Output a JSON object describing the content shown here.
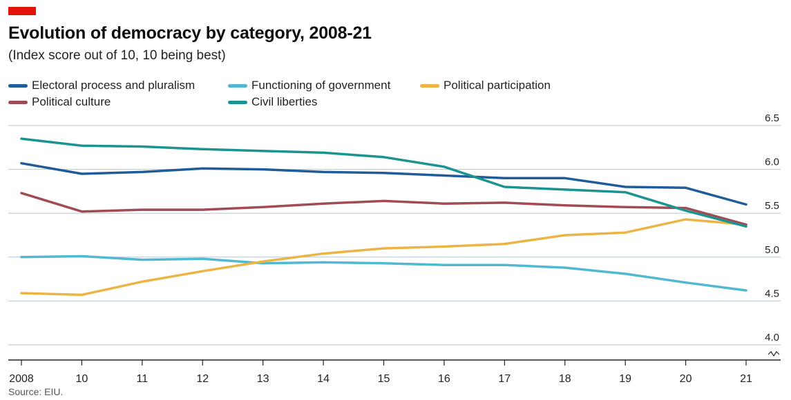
{
  "header": {
    "title": "Evolution of democracy by category, 2008-21",
    "subtitle": "(Index score out of 10, 10 being best)"
  },
  "source": "Source: EIU.",
  "colors": {
    "brand_red": "#e3120b",
    "grid": "#b7c6cf",
    "axis": "#222222"
  },
  "chart_data": {
    "type": "line",
    "categories": [
      "2008",
      "10",
      "11",
      "12",
      "13",
      "14",
      "15",
      "16",
      "17",
      "18",
      "19",
      "20",
      "21"
    ],
    "ylim": [
      4.0,
      6.5
    ],
    "yticks": [
      "4.0",
      "4.5",
      "5.0",
      "5.5",
      "6.0",
      "6.5"
    ],
    "y_axis_side": "right",
    "grid": true,
    "legend": "top",
    "axis_break": true,
    "series": [
      {
        "name": "Electoral process and pluralism",
        "color": "#1f5c99",
        "values": [
          6.07,
          5.95,
          5.97,
          6.01,
          6.0,
          5.97,
          5.96,
          5.93,
          5.9,
          5.9,
          5.8,
          5.79,
          5.6
        ]
      },
      {
        "name": "Functioning of government",
        "color": "#50b8d0",
        "values": [
          5.0,
          5.01,
          4.97,
          4.98,
          4.93,
          4.94,
          4.93,
          4.91,
          4.91,
          4.88,
          4.81,
          4.71,
          4.62
        ]
      },
      {
        "name": "Political participation",
        "color": "#ebb445",
        "values": [
          4.59,
          4.57,
          4.72,
          4.84,
          4.95,
          5.04,
          5.1,
          5.12,
          5.15,
          5.25,
          5.28,
          5.43,
          5.37
        ]
      },
      {
        "name": "Political culture",
        "color": "#a14b55",
        "values": [
          5.73,
          5.52,
          5.54,
          5.54,
          5.57,
          5.61,
          5.64,
          5.61,
          5.62,
          5.59,
          5.57,
          5.56,
          5.37
        ]
      },
      {
        "name": "Civil liberties",
        "color": "#1b9391",
        "values": [
          6.35,
          6.27,
          6.26,
          6.23,
          6.21,
          6.19,
          6.14,
          6.03,
          5.8,
          5.77,
          5.74,
          5.53,
          5.35
        ]
      }
    ]
  }
}
